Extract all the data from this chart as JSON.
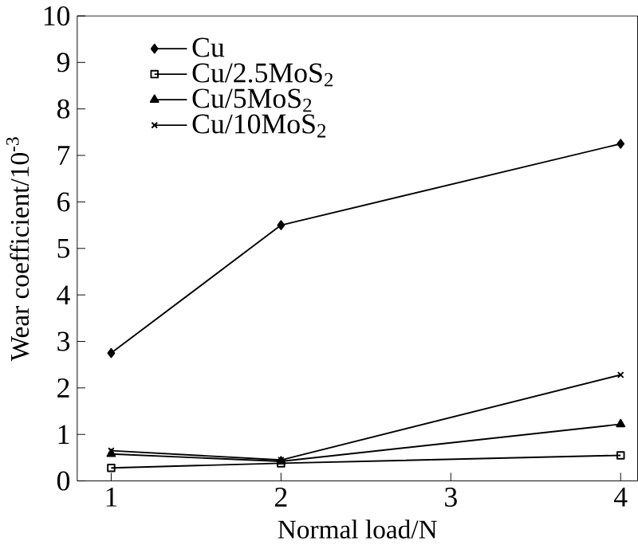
{
  "chart_data": {
    "type": "line",
    "xlabel": "Normal load/N",
    "ylabel": "Wear coefficient/10$^{-3}$",
    "x": [
      1,
      2,
      4
    ],
    "xlim": [
      0.8,
      4.1
    ],
    "ylim": [
      0,
      10
    ],
    "xticks": [
      1,
      2,
      3,
      4
    ],
    "yticks": [
      0,
      1,
      2,
      3,
      4,
      5,
      6,
      7,
      8,
      9,
      10
    ],
    "grid": false,
    "legend": "top",
    "line_style": "solid",
    "series": [
      {
        "name": "Cu",
        "color": "#000000",
        "marker": "diamond",
        "values": [
          2.75,
          5.5,
          7.25
        ]
      },
      {
        "name": "Cu/2.5MoS$_{2}$",
        "color": "#000000",
        "marker": "square",
        "values": [
          0.28,
          0.38,
          0.55
        ]
      },
      {
        "name": "Cu/5MoS$_{2}$",
        "color": "#000000",
        "marker": "triangle",
        "values": [
          0.58,
          0.42,
          1.22
        ]
      },
      {
        "name": "Cu/10MoS$_{2}$",
        "color": "#000000",
        "marker": "cross",
        "values": [
          0.65,
          0.45,
          2.28
        ]
      }
    ]
  }
}
